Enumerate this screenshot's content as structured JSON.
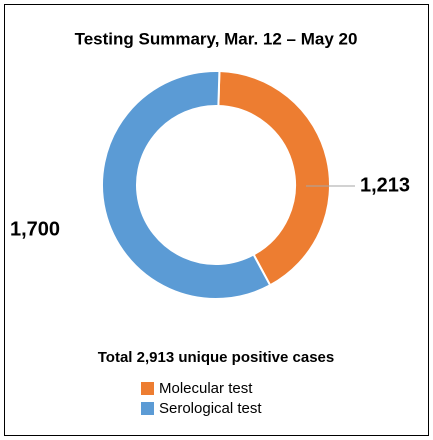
{
  "chart_data": {
    "type": "donut",
    "title": "Testing Summary, Mar. 12 – May 20",
    "subtitle": "Total 2,913 unique positive cases",
    "categories": [
      "Molecular test",
      "Serological test"
    ],
    "values": [
      1213,
      1700
    ],
    "value_labels": [
      "1,213",
      "1,700"
    ],
    "colors": [
      "#ed7d31",
      "#5b9bd5"
    ],
    "legend": "bottom"
  }
}
